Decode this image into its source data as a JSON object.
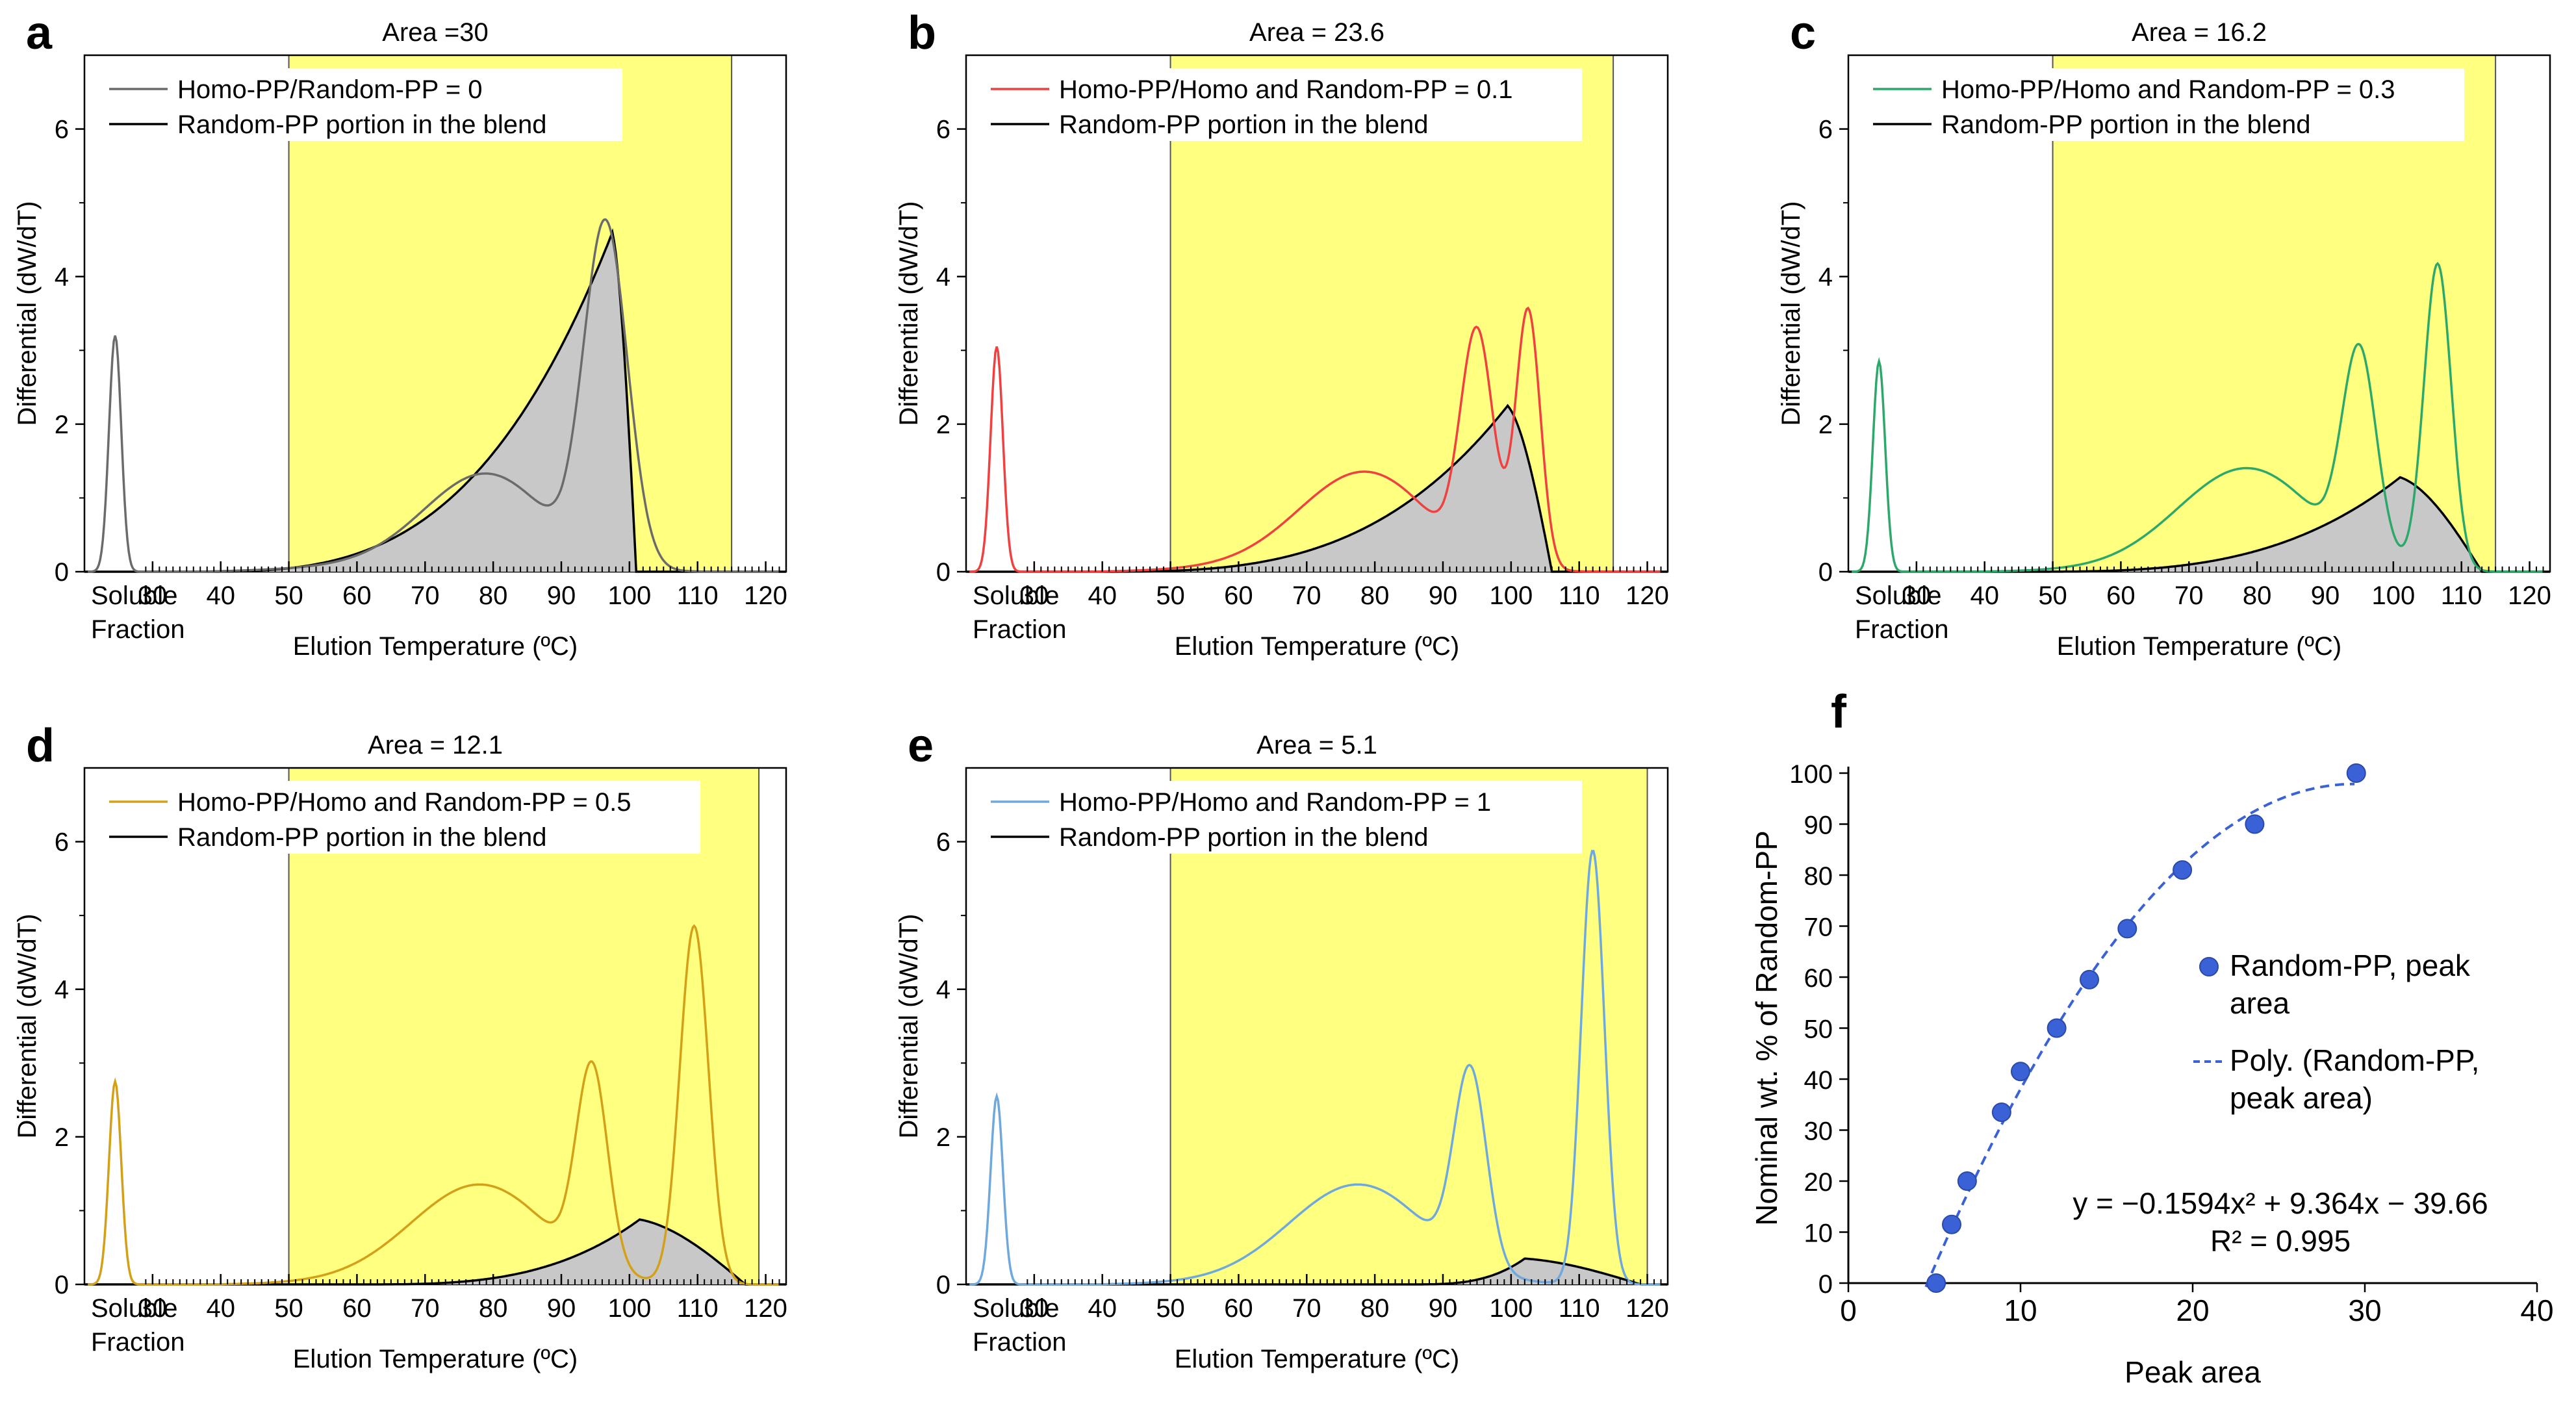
{
  "figure": {
    "panels": [
      {
        "letter": "a",
        "title": "Area =30",
        "ylabel": "Differential (dW/dT)",
        "xlabel": "Elution Temperature (ºC)",
        "soluble_label": [
          "Soluble",
          "Fraction"
        ],
        "legend": [
          "Homo-PP/Random-PP = 0",
          "Random-PP portion in the blend"
        ],
        "color": "#6b6b6b",
        "window_end": 115,
        "area": 30
      },
      {
        "letter": "b",
        "title": "Area = 23.6",
        "ylabel": "Differential (dW/dT)",
        "xlabel": "Elution Temperature (ºC)",
        "soluble_label": [
          "Soluble",
          "Fraction"
        ],
        "legend": [
          "Homo-PP/Homo and Random-PP = 0.1",
          "Random-PP portion in the blend"
        ],
        "color": "#f04040",
        "window_end": 115,
        "area": 23.6
      },
      {
        "letter": "c",
        "title": "Area = 16.2",
        "ylabel": "Differential (dW/dT)",
        "xlabel": "Elution Temperature (ºC)",
        "soluble_label": [
          "Soluble",
          "Fraction"
        ],
        "legend": [
          "Homo-PP/Homo and Random-PP = 0.3",
          "Random-PP portion in the blend"
        ],
        "color": "#2ca86a",
        "window_end": 115,
        "area": 16.2
      },
      {
        "letter": "d",
        "title": "Area = 12.1",
        "ylabel": "Differential (dW/dT)",
        "xlabel": "Elution Temperature (ºC)",
        "soluble_label": [
          "Soluble",
          "Fraction"
        ],
        "legend": [
          "Homo-PP/Homo and Random-PP = 0.5",
          "Random-PP portion in the blend"
        ],
        "color": "#d4a017",
        "window_end": 119,
        "area": 12.1
      },
      {
        "letter": "e",
        "title": "Area = 5.1",
        "ylabel": "Differential (dW/dT)",
        "xlabel": "Elution Temperature (ºC)",
        "soluble_label": [
          "Soluble",
          "Fraction"
        ],
        "legend": [
          "Homo-PP/Homo and Random-PP = 1",
          "Random-PP portion in the blend"
        ],
        "color": "#6fa8dc",
        "window_end": 120,
        "area": 5.1
      }
    ],
    "panel_f": {
      "letter": "f",
      "xlabel": "Peak area",
      "ylabel": "Nominal wt. % of Random-PP",
      "legend_points": [
        "Random-PP, peak",
        "area"
      ],
      "legend_line": [
        "Poly. (Random-PP,",
        "peak area)"
      ],
      "equation": "y = −0.1594x² + 9.364x − 39.66",
      "r2": "R² = 0.995",
      "point_color": "#3a62d6",
      "line_color": "#3a62d6"
    },
    "highlight_color": "#ffff80",
    "fill_color": "#c8c8c8"
  },
  "chart_data": [
    {
      "type": "line",
      "panel": "a",
      "x_ticks": [
        30,
        40,
        50,
        60,
        70,
        80,
        90,
        100,
        110,
        120
      ],
      "y_ticks": [
        0,
        2,
        4,
        6
      ],
      "xlim": [
        20,
        123
      ],
      "ylim": [
        0,
        7
      ],
      "highlight_window": [
        50,
        115
      ],
      "series": [
        {
          "name": "Homo-PP/Random-PP = 0",
          "components": [
            {
              "kind": "soluble",
              "mu": 24.5,
              "amp": 3.2
            },
            {
              "kind": "gauss",
              "mu": 79,
              "sigma": 9,
              "amp": 1.15
            },
            {
              "kind": "gauss",
              "mu": 96.5,
              "sigma": 3.2,
              "amp": 4.6
            },
            {
              "kind": "tail",
              "start": 35,
              "end": 90,
              "amp": 0.35
            }
          ]
        },
        {
          "name": "Random-PP portion in the blend",
          "components": [
            {
              "kind": "skew",
              "start": 35,
              "peak": 97.5,
              "end": 101,
              "amp": 4.6
            }
          ]
        }
      ]
    },
    {
      "type": "line",
      "panel": "b",
      "x_ticks": [
        30,
        40,
        50,
        60,
        70,
        80,
        90,
        100,
        110,
        120
      ],
      "y_ticks": [
        0,
        2,
        4,
        6
      ],
      "xlim": [
        20,
        123
      ],
      "ylim": [
        0,
        7
      ],
      "highlight_window": [
        50,
        115
      ],
      "series": [
        {
          "name": "Homo-PP/Homo and Random-PP = 0.1",
          "components": [
            {
              "kind": "soluble",
              "mu": 24.5,
              "amp": 3.05
            },
            {
              "kind": "gauss",
              "mu": 78.5,
              "sigma": 9.5,
              "amp": 1.2
            },
            {
              "kind": "gauss",
              "mu": 95,
              "sigma": 2.4,
              "amp": 3.05
            },
            {
              "kind": "gauss",
              "mu": 102.5,
              "sigma": 1.8,
              "amp": 3.5
            },
            {
              "kind": "tail",
              "start": 37,
              "end": 90,
              "amp": 0.3
            }
          ]
        },
        {
          "name": "Random-PP portion in the blend",
          "components": [
            {
              "kind": "skew",
              "start": 38,
              "peak": 99.5,
              "end": 106,
              "amp": 2.25
            }
          ]
        }
      ]
    },
    {
      "type": "line",
      "panel": "c",
      "x_ticks": [
        30,
        40,
        50,
        60,
        70,
        80,
        90,
        100,
        110,
        120
      ],
      "y_ticks": [
        0,
        2,
        4,
        6
      ],
      "xlim": [
        20,
        123
      ],
      "ylim": [
        0,
        7
      ],
      "highlight_window": [
        50,
        115
      ],
      "series": [
        {
          "name": "Homo-PP/Homo and Random-PP = 0.3",
          "components": [
            {
              "kind": "soluble",
              "mu": 24.5,
              "amp": 2.85
            },
            {
              "kind": "gauss",
              "mu": 78.5,
              "sigma": 10,
              "amp": 1.3
            },
            {
              "kind": "gauss",
              "mu": 95,
              "sigma": 2.5,
              "amp": 2.75
            },
            {
              "kind": "gauss",
              "mu": 106.5,
              "sigma": 2.0,
              "amp": 4.15
            },
            {
              "kind": "tail",
              "start": 37,
              "end": 90,
              "amp": 0.2
            }
          ]
        },
        {
          "name": "Random-PP portion in the blend",
          "components": [
            {
              "kind": "skew",
              "start": 45,
              "peak": 101,
              "end": 113,
              "amp": 1.28
            }
          ]
        }
      ]
    },
    {
      "type": "line",
      "panel": "d",
      "x_ticks": [
        30,
        40,
        50,
        60,
        70,
        80,
        90,
        100,
        110,
        120
      ],
      "y_ticks": [
        0,
        2,
        4,
        6
      ],
      "xlim": [
        20,
        123
      ],
      "ylim": [
        0,
        7
      ],
      "highlight_window": [
        50,
        119
      ],
      "series": [
        {
          "name": "Homo-PP/Homo and Random-PP = 0.5",
          "components": [
            {
              "kind": "soluble",
              "mu": 24.5,
              "amp": 2.75
            },
            {
              "kind": "gauss",
              "mu": 78,
              "sigma": 10,
              "amp": 1.25
            },
            {
              "kind": "gauss",
              "mu": 94.5,
              "sigma": 2.3,
              "amp": 2.7
            },
            {
              "kind": "gauss",
              "mu": 109.5,
              "sigma": 2.1,
              "amp": 4.85
            },
            {
              "kind": "tail",
              "start": 37,
              "end": 90,
              "amp": 0.2
            }
          ]
        },
        {
          "name": "Random-PP portion in the blend",
          "components": [
            {
              "kind": "skew",
              "start": 60,
              "peak": 101.5,
              "end": 117,
              "amp": 0.88
            }
          ]
        }
      ]
    },
    {
      "type": "line",
      "panel": "e",
      "x_ticks": [
        30,
        40,
        50,
        60,
        70,
        80,
        90,
        100,
        110,
        120
      ],
      "y_ticks": [
        0,
        2,
        4,
        6
      ],
      "xlim": [
        20,
        123
      ],
      "ylim": [
        0,
        7
      ],
      "highlight_window": [
        50,
        120
      ],
      "series": [
        {
          "name": "Homo-PP/Homo and Random-PP = 1",
          "components": [
            {
              "kind": "soluble",
              "mu": 24.5,
              "amp": 2.55
            },
            {
              "kind": "gauss",
              "mu": 77.5,
              "sigma": 10,
              "amp": 1.25
            },
            {
              "kind": "gauss",
              "mu": 94,
              "sigma": 2.4,
              "amp": 2.65
            },
            {
              "kind": "gauss",
              "mu": 112,
              "sigma": 1.7,
              "amp": 5.88
            },
            {
              "kind": "tail",
              "start": 37,
              "end": 90,
              "amp": 0.2
            }
          ]
        },
        {
          "name": "Random-PP portion in the blend",
          "components": [
            {
              "kind": "skew",
              "start": 85,
              "peak": 102,
              "end": 119,
              "amp": 0.35
            }
          ]
        }
      ]
    },
    {
      "type": "scatter",
      "panel": "f",
      "xlabel": "Peak area",
      "ylabel": "Nominal wt. % of Random-PP",
      "xlim": [
        0,
        40
      ],
      "ylim": [
        0,
        100
      ],
      "x_ticks": [
        0,
        10,
        20,
        30,
        40
      ],
      "y_ticks": [
        0,
        10,
        20,
        30,
        40,
        50,
        60,
        70,
        80,
        90,
        100
      ],
      "series": [
        {
          "name": "Random-PP, peak area",
          "points": [
            [
              5.1,
              0
            ],
            [
              6.0,
              11.5
            ],
            [
              6.9,
              20
            ],
            [
              8.9,
              33.5
            ],
            [
              10.0,
              41.5
            ],
            [
              12.1,
              50
            ],
            [
              14.0,
              59.5
            ],
            [
              16.2,
              69.5
            ],
            [
              19.4,
              81
            ],
            [
              23.6,
              90
            ],
            [
              29.5,
              100
            ]
          ]
        }
      ],
      "fit": {
        "name": "Poly. (Random-PP, peak area)",
        "coefficients": [
          -0.1594,
          9.364,
          -39.66
        ],
        "x_range": [
          4.5,
          29.5
        ]
      }
    }
  ]
}
